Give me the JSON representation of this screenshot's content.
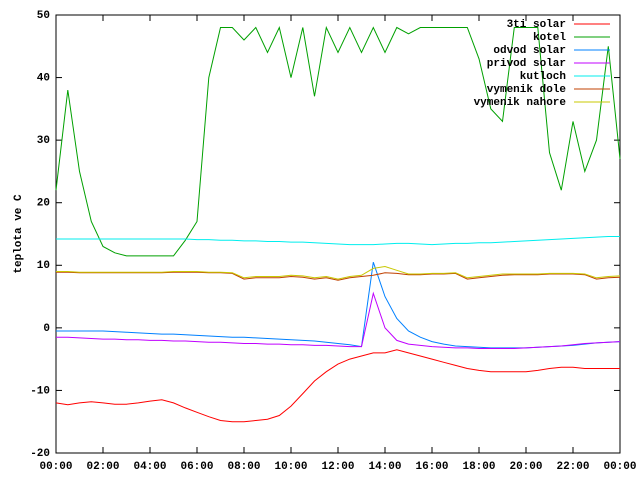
{
  "chart_data": {
    "type": "line",
    "ylabel": "teplota ve C",
    "x": [
      0,
      0.5,
      1,
      1.5,
      2,
      2.5,
      3,
      3.5,
      4,
      4.5,
      5,
      5.5,
      6,
      6.5,
      7,
      7.5,
      8,
      8.5,
      9,
      9.5,
      10,
      10.5,
      11,
      11.5,
      12,
      12.5,
      13,
      13.5,
      14,
      14.5,
      15,
      15.5,
      16,
      16.5,
      17,
      17.5,
      18,
      18.5,
      19,
      19.5,
      20,
      20.5,
      21,
      21.5,
      22,
      22.5,
      23,
      23.5,
      24
    ],
    "xlim": [
      0,
      24
    ],
    "xticks": [
      {
        "value": 0,
        "label": "00:00"
      },
      {
        "value": 2,
        "label": "02:00"
      },
      {
        "value": 4,
        "label": "04:00"
      },
      {
        "value": 6,
        "label": "06:00"
      },
      {
        "value": 8,
        "label": "08:00"
      },
      {
        "value": 10,
        "label": "10:00"
      },
      {
        "value": 12,
        "label": "12:00"
      },
      {
        "value": 14,
        "label": "14:00"
      },
      {
        "value": 16,
        "label": "16:00"
      },
      {
        "value": 18,
        "label": "18:00"
      },
      {
        "value": 20,
        "label": "20:00"
      },
      {
        "value": 22,
        "label": "22:00"
      },
      {
        "value": 24,
        "label": "00:00"
      }
    ],
    "ylim": [
      -20,
      50
    ],
    "yticks": [
      -20,
      -10,
      0,
      10,
      20,
      30,
      40,
      50
    ],
    "legend": "top-right",
    "series": [
      {
        "name": "3ti solar",
        "color": "#ff0000",
        "values": [
          -12,
          -12.3,
          -12,
          -11.8,
          -12,
          -12.2,
          -12.2,
          -12,
          -11.7,
          -11.5,
          -12,
          -12.8,
          -13.5,
          -14.2,
          -14.8,
          -15,
          -15,
          -14.8,
          -14.6,
          -14,
          -12.5,
          -10.5,
          -8.5,
          -7,
          -5.8,
          -5,
          -4.5,
          -4,
          -4,
          -3.5,
          -4,
          -4.5,
          -5,
          -5.5,
          -6,
          -6.5,
          -6.8,
          -7,
          -7,
          -7,
          -7,
          -6.8,
          -6.5,
          -6.3,
          -6.3,
          -6.5,
          -6.5,
          -6.5,
          -6.5
        ]
      },
      {
        "name": "kotel",
        "color": "#00a000",
        "values": [
          22,
          38,
          25,
          17,
          13,
          12,
          11.5,
          11.5,
          11.5,
          11.5,
          11.5,
          14,
          17,
          40,
          48,
          48,
          46,
          48,
          44,
          48,
          40,
          48,
          37,
          48,
          44,
          48,
          44,
          48,
          44,
          48,
          47,
          48,
          48,
          48,
          48,
          48,
          43,
          35,
          33,
          48,
          48,
          48,
          28,
          22,
          33,
          25,
          30,
          45,
          27
        ]
      },
      {
        "name": "odvod solar",
        "color": "#0080ff",
        "values": [
          -0.5,
          -0.5,
          -0.5,
          -0.5,
          -0.5,
          -0.6,
          -0.7,
          -0.8,
          -0.9,
          -1,
          -1,
          -1.1,
          -1.2,
          -1.3,
          -1.4,
          -1.5,
          -1.5,
          -1.6,
          -1.7,
          -1.8,
          -1.9,
          -2,
          -2.1,
          -2.3,
          -2.5,
          -2.7,
          -3,
          10.5,
          5,
          1.5,
          -0.5,
          -1.5,
          -2.2,
          -2.6,
          -2.9,
          -3,
          -3.1,
          -3.2,
          -3.2,
          -3.2,
          -3.2,
          -3.1,
          -3,
          -2.9,
          -2.8,
          -2.6,
          -2.4,
          -2.3,
          -2.2
        ]
      },
      {
        "name": "privod solar",
        "color": "#c000ff",
        "values": [
          -1.5,
          -1.5,
          -1.6,
          -1.7,
          -1.8,
          -1.8,
          -1.9,
          -1.9,
          -2,
          -2,
          -2.1,
          -2.1,
          -2.2,
          -2.3,
          -2.3,
          -2.4,
          -2.5,
          -2.5,
          -2.6,
          -2.6,
          -2.7,
          -2.7,
          -2.8,
          -2.8,
          -2.9,
          -3,
          -3,
          5.5,
          0,
          -2,
          -2.6,
          -2.8,
          -3,
          -3.1,
          -3.2,
          -3.2,
          -3.3,
          -3.3,
          -3.3,
          -3.3,
          -3.2,
          -3.1,
          -3,
          -2.9,
          -2.7,
          -2.5,
          -2.4,
          -2.3,
          -2.2
        ]
      },
      {
        "name": "kutloch",
        "color": "#00eeee",
        "values": [
          14.2,
          14.2,
          14.2,
          14.2,
          14.2,
          14.2,
          14.2,
          14.2,
          14.2,
          14.2,
          14.2,
          14.2,
          14.1,
          14.1,
          14,
          14,
          13.9,
          13.9,
          13.8,
          13.8,
          13.7,
          13.7,
          13.6,
          13.5,
          13.4,
          13.3,
          13.3,
          13.3,
          13.4,
          13.5,
          13.5,
          13.4,
          13.3,
          13.4,
          13.5,
          13.5,
          13.6,
          13.6,
          13.7,
          13.8,
          13.9,
          14,
          14.1,
          14.2,
          14.3,
          14.4,
          14.5,
          14.6,
          14.6
        ]
      },
      {
        "name": "vymenik dole",
        "color": "#c04000",
        "values": [
          8.9,
          8.9,
          8.8,
          8.8,
          8.8,
          8.8,
          8.8,
          8.8,
          8.8,
          8.8,
          8.9,
          8.9,
          8.9,
          8.8,
          8.8,
          8.7,
          7.8,
          8,
          8,
          8,
          8.2,
          8.1,
          7.8,
          8,
          7.6,
          8,
          8.2,
          8.4,
          8.8,
          8.7,
          8.5,
          8.5,
          8.6,
          8.6,
          8.7,
          7.8,
          8,
          8.2,
          8.4,
          8.5,
          8.5,
          8.5,
          8.6,
          8.6,
          8.6,
          8.5,
          7.8,
          8,
          8.1
        ]
      },
      {
        "name": "vymenik nahore",
        "color": "#c8c800",
        "values": [
          9,
          9,
          8.9,
          8.9,
          8.9,
          8.9,
          8.9,
          8.9,
          8.9,
          8.9,
          9,
          9,
          9,
          8.9,
          8.9,
          8.8,
          8,
          8.2,
          8.2,
          8.2,
          8.4,
          8.3,
          8,
          8.2,
          7.8,
          8.2,
          8.4,
          9.5,
          9.8,
          9.2,
          8.6,
          8.6,
          8.7,
          8.7,
          8.8,
          8,
          8.2,
          8.4,
          8.6,
          8.6,
          8.6,
          8.6,
          8.7,
          8.7,
          8.7,
          8.6,
          8,
          8.2,
          8.3
        ]
      }
    ]
  }
}
